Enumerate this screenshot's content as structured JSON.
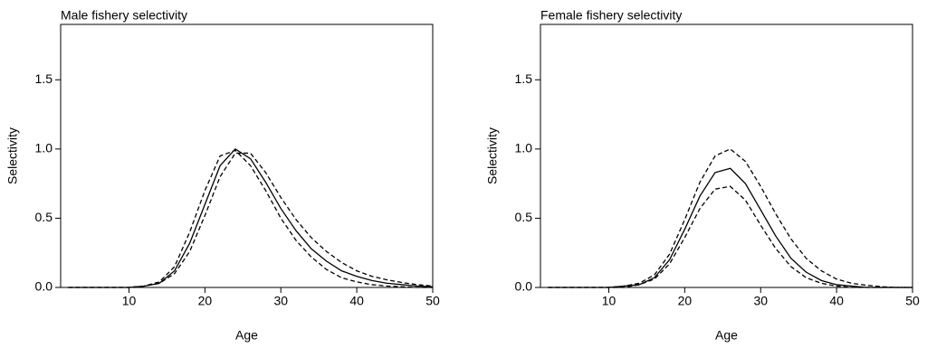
{
  "chart_data": [
    {
      "type": "line",
      "title": "Male fishery selectivity",
      "x_label": "Age",
      "y_label": "Selectivity",
      "x": [
        2,
        4,
        6,
        8,
        10,
        12,
        14,
        16,
        18,
        20,
        22,
        24,
        26,
        28,
        30,
        32,
        34,
        36,
        38,
        40,
        42,
        44,
        46,
        48,
        50
      ],
      "series": [
        {
          "color": "#000000",
          "style": "solid",
          "values": [
            0,
            0,
            0,
            0,
            0,
            0.01,
            0.03,
            0.12,
            0.32,
            0.6,
            0.88,
            1.0,
            0.93,
            0.76,
            0.57,
            0.41,
            0.28,
            0.19,
            0.12,
            0.08,
            0.05,
            0.03,
            0.02,
            0.01,
            0.005
          ]
        },
        {
          "color": "#000000",
          "style": "dashed",
          "values": [
            0,
            0,
            0,
            0,
            0,
            0.01,
            0.04,
            0.15,
            0.4,
            0.7,
            0.95,
            0.99,
            0.88,
            0.7,
            0.5,
            0.34,
            0.22,
            0.13,
            0.07,
            0.04,
            0.02,
            0.01,
            0.005,
            0,
            0
          ]
        },
        {
          "color": "#000000",
          "style": "dashed",
          "values": [
            0,
            0,
            0,
            0,
            0,
            0.01,
            0.03,
            0.1,
            0.26,
            0.52,
            0.8,
            0.97,
            0.97,
            0.83,
            0.65,
            0.49,
            0.36,
            0.26,
            0.18,
            0.12,
            0.08,
            0.055,
            0.035,
            0.02,
            0.01
          ]
        }
      ],
      "xlim": [
        1,
        50
      ],
      "xticks": [
        10,
        20,
        30,
        40,
        50
      ],
      "ylim": [
        0,
        1.9
      ],
      "yticks": [
        {
          "value": 0,
          "label": "0.0"
        },
        {
          "value": 0.5,
          "label": "0.5"
        },
        {
          "value": 1,
          "label": "1.0"
        },
        {
          "value": 1.5,
          "label": "1.5"
        }
      ]
    },
    {
      "type": "line",
      "title": "Female fishery selectivity",
      "x_label": "Age",
      "y_label": "Selectivity",
      "x": [
        2,
        4,
        6,
        8,
        10,
        12,
        14,
        16,
        18,
        20,
        22,
        24,
        26,
        28,
        30,
        32,
        34,
        36,
        38,
        40,
        42,
        44,
        46,
        48,
        50
      ],
      "series": [
        {
          "color": "#000000",
          "style": "solid",
          "values": [
            0,
            0,
            0,
            0,
            0,
            0.01,
            0.02,
            0.07,
            0.2,
            0.42,
            0.66,
            0.83,
            0.86,
            0.75,
            0.56,
            0.37,
            0.21,
            0.11,
            0.05,
            0.02,
            0.01,
            0,
            0,
            0,
            0
          ]
        },
        {
          "color": "#000000",
          "style": "dashed",
          "values": [
            0,
            0,
            0,
            0,
            0,
            0.01,
            0.03,
            0.09,
            0.24,
            0.49,
            0.76,
            0.95,
            1.0,
            0.91,
            0.73,
            0.53,
            0.35,
            0.21,
            0.12,
            0.06,
            0.03,
            0.015,
            0.005,
            0,
            0
          ]
        },
        {
          "color": "#000000",
          "style": "dashed",
          "values": [
            0,
            0,
            0,
            0,
            0,
            0,
            0.02,
            0.06,
            0.17,
            0.36,
            0.57,
            0.71,
            0.73,
            0.63,
            0.45,
            0.28,
            0.15,
            0.07,
            0.03,
            0.01,
            0,
            0,
            0,
            0,
            0
          ]
        }
      ],
      "xlim": [
        1,
        50
      ],
      "xticks": [
        10,
        20,
        30,
        40,
        50
      ],
      "ylim": [
        0,
        1.9
      ],
      "yticks": [
        {
          "value": 0,
          "label": "0.0"
        },
        {
          "value": 0.5,
          "label": "0.5"
        },
        {
          "value": 1,
          "label": "1.0"
        },
        {
          "value": 1.5,
          "label": "1.5"
        }
      ]
    }
  ]
}
